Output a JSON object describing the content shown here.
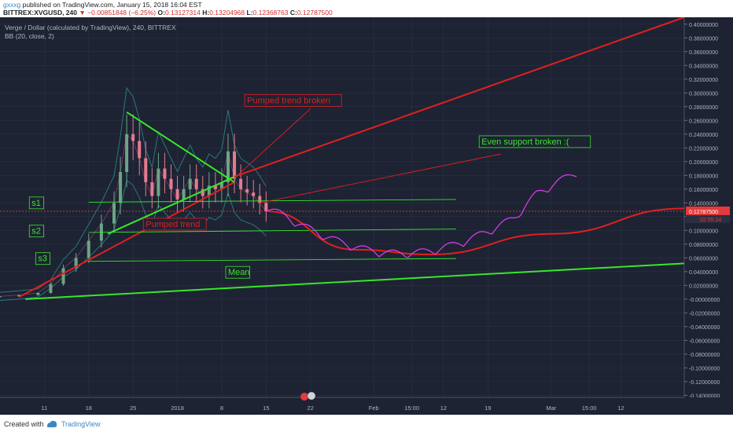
{
  "header": {
    "line1": {
      "username": "gxxxg",
      "rest": "published on TradingView.com, January 15, 2018 16:04 EST"
    },
    "line2": {
      "symbol": "BITTREX:XVGUSD, 240",
      "change": "▼ −0.00851848 (−6.25%)",
      "o_label": "O:",
      "o": "0.13127314",
      "h_label": "H:",
      "h": "0.13204968",
      "l_label": "L:",
      "l": "0.12368763",
      "c_label": "C:",
      "c": "0.12787500"
    }
  },
  "legend": {
    "title": "Verge / Dollar (calculated by TradingView), 240, BITTREX",
    "indicator": "BB (20, close, 2)"
  },
  "footer": {
    "created": "Created with",
    "brand": "TradingView"
  },
  "colors": {
    "background": "#1d2333",
    "grid": "#2b3245",
    "candle_up": "#6ba583",
    "candle_down": "#e57b8f",
    "trend_red": "#e21f1f",
    "trend_green": "#39e62b",
    "projection": "#e23bf2",
    "text_axis": "#b2b5be",
    "price_tag": "#e33b3b"
  },
  "chart_data": {
    "type": "line",
    "title": "Verge / Dollar (calculated by TradingView), 240, BITTREX",
    "indicator": "BB (20, close, 2)",
    "x_ticks": [
      "11",
      "18",
      "25",
      "2018",
      "8",
      "15",
      "22",
      "Feb",
      "15:00",
      "12",
      "19",
      "Mar",
      "15:00",
      "12"
    ],
    "y_ticks": [
      "0.40000000",
      "0.38000000",
      "0.36000000",
      "0.34000000",
      "0.32000000",
      "0.30000000",
      "0.28000000",
      "0.26000000",
      "0.24000000",
      "0.22000000",
      "0.20000000",
      "0.18000000",
      "0.16000000",
      "0.14000000",
      "0.12000000",
      "0.10000000",
      "0.08000000",
      "0.06000000",
      "0.04000000",
      "0.02000000",
      "-0.00000000",
      "-0.02000000",
      "-0.04000000",
      "-0.06000000",
      "-0.08000000",
      "-0.10000000",
      "-0.12000000",
      "-0.14000000"
    ],
    "y_range": [
      -0.143,
      0.41
    ],
    "last_price": "0.12787500",
    "countdown": "02:55:24",
    "price_series": [
      {
        "date": "2017-12-04",
        "close": 0.004
      },
      {
        "date": "2017-12-07",
        "close": 0.006
      },
      {
        "date": "2017-12-10",
        "close": 0.009
      },
      {
        "date": "2017-12-12",
        "close": 0.022
      },
      {
        "date": "2017-12-14",
        "close": 0.045
      },
      {
        "date": "2017-12-16",
        "close": 0.06
      },
      {
        "date": "2017-12-18",
        "close": 0.085
      },
      {
        "date": "2017-12-20",
        "close": 0.11
      },
      {
        "date": "2017-12-22",
        "close": 0.14
      },
      {
        "date": "2017-12-23",
        "close": 0.185
      },
      {
        "date": "2017-12-24",
        "close": 0.24
      },
      {
        "date": "2017-12-25",
        "close": 0.23
      },
      {
        "date": "2017-12-26",
        "close": 0.205
      },
      {
        "date": "2017-12-27",
        "close": 0.17
      },
      {
        "date": "2017-12-28",
        "close": 0.15
      },
      {
        "date": "2017-12-29",
        "close": 0.19
      },
      {
        "date": "2017-12-30",
        "close": 0.175
      },
      {
        "date": "2017-12-31",
        "close": 0.16
      },
      {
        "date": "2018-01-01",
        "close": 0.145
      },
      {
        "date": "2018-01-02",
        "close": 0.16
      },
      {
        "date": "2018-01-03",
        "close": 0.175
      },
      {
        "date": "2018-01-04",
        "close": 0.16
      },
      {
        "date": "2018-01-05",
        "close": 0.15
      },
      {
        "date": "2018-01-06",
        "close": 0.165
      },
      {
        "date": "2018-01-07",
        "close": 0.16
      },
      {
        "date": "2018-01-08",
        "close": 0.17
      },
      {
        "date": "2018-01-09",
        "close": 0.215
      },
      {
        "date": "2018-01-10",
        "close": 0.175
      },
      {
        "date": "2018-01-11",
        "close": 0.16
      },
      {
        "date": "2018-01-12",
        "close": 0.155
      },
      {
        "date": "2018-01-13",
        "close": 0.15
      },
      {
        "date": "2018-01-14",
        "close": 0.14
      },
      {
        "date": "2018-01-15",
        "close": 0.128
      }
    ],
    "drawings": [
      {
        "kind": "line",
        "name": "pumped-trend-line",
        "color": "#e21f1f",
        "from": {
          "date": "2017-12-07",
          "price": 0.003
        },
        "to": {
          "date": "2018-01-10",
          "price": 0.17
        }
      },
      {
        "kind": "line",
        "name": "pumped-projection-line",
        "color": "#e21f1f",
        "from": {
          "date": "2018-01-09",
          "price": 0.175
        },
        "to": {
          "date": "2018-03-22",
          "price": 0.41
        }
      },
      {
        "kind": "line",
        "name": "upper-triangle-line",
        "color": "#39e62b",
        "from": {
          "date": "2017-12-24",
          "price": 0.272
        },
        "to": {
          "date": "2018-01-10",
          "price": 0.17
        }
      },
      {
        "kind": "line",
        "name": "lower-triangle-line",
        "color": "#39e62b",
        "from": {
          "date": "2017-12-21",
          "price": 0.095
        },
        "to": {
          "date": "2018-01-10",
          "price": 0.178
        }
      },
      {
        "kind": "line",
        "name": "mean-line",
        "color": "#39e62b",
        "from": {
          "date": "2017-12-08",
          "price": 0.0
        },
        "to": {
          "date": "2018-03-22",
          "price": 0.052
        }
      },
      {
        "kind": "line",
        "name": "s1-line",
        "color": "#39e62b",
        "from": {
          "date": "2017-12-18",
          "price": 0.141
        },
        "to": {
          "date": "2018-02-14",
          "price": 0.145
        }
      },
      {
        "kind": "line",
        "name": "s2-line",
        "color": "#39e62b",
        "from": {
          "date": "2017-12-18",
          "price": 0.097
        },
        "to": {
          "date": "2018-02-14",
          "price": 0.102
        }
      },
      {
        "kind": "line",
        "name": "s3-line",
        "color": "#39e62b",
        "from": {
          "date": "2017-12-18",
          "price": 0.055
        },
        "to": {
          "date": "2018-02-14",
          "price": 0.059
        }
      },
      {
        "kind": "line",
        "name": "arrow-to-break",
        "color": "#e21f1f",
        "from": {
          "date": "2018-01-22",
          "price": 0.277
        },
        "to": {
          "date": "2018-01-10",
          "price": 0.176
        }
      },
      {
        "kind": "line",
        "name": "arrow-to-support",
        "color": "#e21f1f",
        "from": {
          "date": "2018-02-21",
          "price": 0.211
        },
        "to": {
          "date": "2018-01-14",
          "price": 0.14
        }
      },
      {
        "kind": "curve",
        "name": "red-arc",
        "color": "#e21f1f",
        "points": [
          {
            "date": "2018-01-15",
            "price": 0.128
          },
          {
            "date": "2018-01-29",
            "price": 0.072
          },
          {
            "date": "2018-02-10",
            "price": 0.065
          },
          {
            "date": "2018-03-01",
            "price": 0.095
          },
          {
            "date": "2018-03-22",
            "price": 0.132
          }
        ]
      }
    ],
    "annotations": [
      {
        "name": "label-pumped-trend-broken",
        "text": "Pumped trend broken",
        "color": "#e21f1f"
      },
      {
        "name": "label-even-support-broken",
        "text": "Even support broken :(",
        "color": "#39e62b"
      },
      {
        "name": "label-pumped-trend",
        "text": "Pumped trend",
        "color": "#e21f1f"
      },
      {
        "name": "label-s1",
        "text": "s1",
        "color": "#39e62b"
      },
      {
        "name": "label-s2",
        "text": "s2",
        "color": "#39e62b"
      },
      {
        "name": "label-s3",
        "text": "s3",
        "color": "#39e62b"
      },
      {
        "name": "label-mean",
        "text": "Mean",
        "color": "#39e62b"
      }
    ]
  }
}
